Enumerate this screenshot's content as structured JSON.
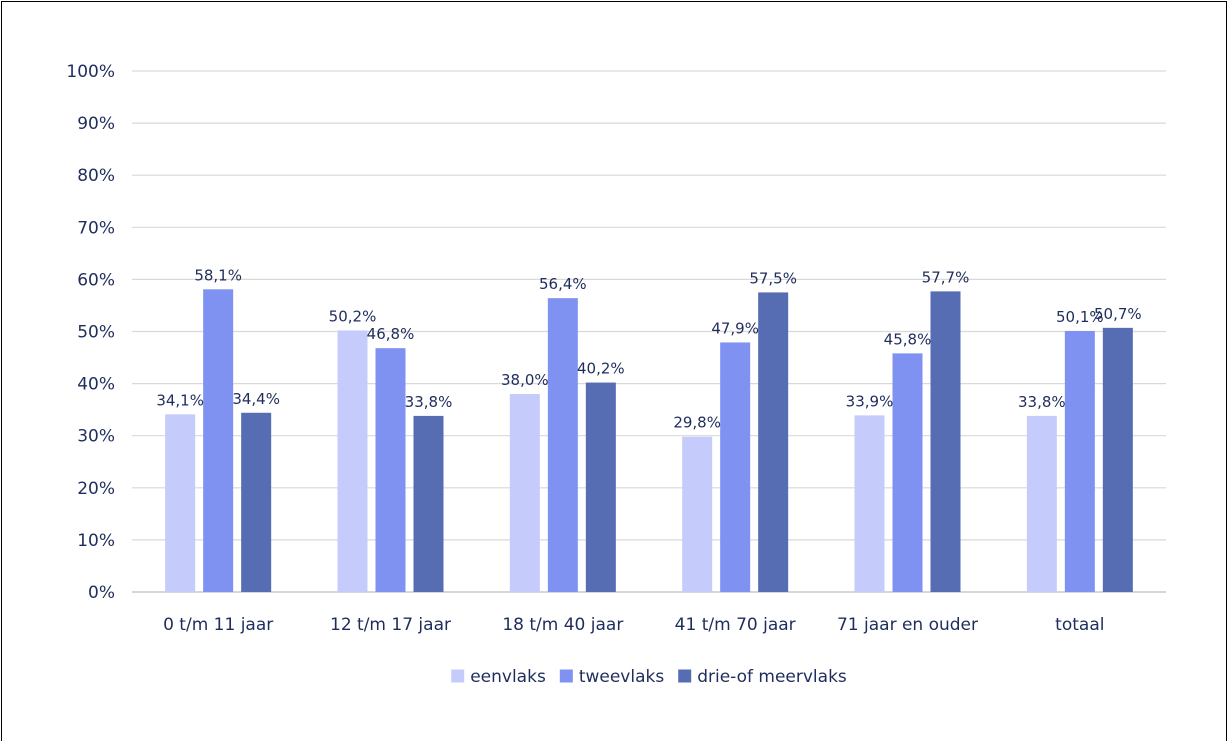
{
  "chart_data": {
    "type": "bar",
    "title": "",
    "xlabel": "",
    "ylabel": "",
    "categories": [
      "0 t/m 11 jaar",
      "12 t/m 17 jaar",
      "18 t/m 40 jaar",
      "41 t/m 70 jaar",
      "71 jaar en ouder",
      "totaal"
    ],
    "series": [
      {
        "name": "eenvlaks",
        "color": "#c5cbfa",
        "values": [
          34.1,
          50.2,
          38.0,
          29.8,
          33.9,
          33.8
        ],
        "labels": [
          "34,1%",
          "50,2%",
          "38,0%",
          "29,8%",
          "33,9%",
          "33,8%"
        ]
      },
      {
        "name": "tweevlaks",
        "color": "#7f92f2",
        "values": [
          58.1,
          46.8,
          56.4,
          47.9,
          45.8,
          50.1
        ],
        "labels": [
          "58,1%",
          "46,8%",
          "56,4%",
          "47,9%",
          "45,8%",
          "50,1%"
        ]
      },
      {
        "name": "drie-of meervlaks",
        "color": "#566cb3",
        "values": [
          34.4,
          33.8,
          40.2,
          57.5,
          57.7,
          50.7
        ],
        "labels": [
          "34,4%",
          "33,8%",
          "40,2%",
          "57,5%",
          "57,7%",
          "50,7%"
        ]
      }
    ],
    "ylim": [
      0,
      100
    ],
    "yticks": [
      "0%",
      "10%",
      "20%",
      "30%",
      "40%",
      "50%",
      "60%",
      "70%",
      "80%",
      "90%",
      "100%"
    ],
    "grid": true,
    "legend": "bottom-center"
  }
}
